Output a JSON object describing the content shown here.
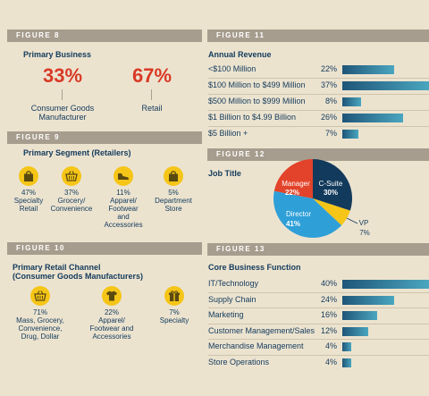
{
  "colors": {
    "background": "#ece3cf",
    "header_bar": "#a79d8e",
    "accent_red": "#d83a26",
    "navy": "#123a5c",
    "icon_yellow": "#f5c518",
    "pie_manager": "#e2432a",
    "pie_csuite": "#123a5c",
    "pie_vp": "#f5c518",
    "pie_director": "#2f9fd8"
  },
  "fig8": {
    "header": "FIGURE 8",
    "title": "Primary Business",
    "items": [
      {
        "pct": "33%",
        "label_line1": "Consumer Goods",
        "label_line2": "Manufacturer"
      },
      {
        "pct": "67%",
        "label_line1": "Retail",
        "label_line2": ""
      }
    ]
  },
  "fig9": {
    "header": "FIGURE 9",
    "title": "Primary Segment (Retailers)",
    "items": [
      {
        "pct": "47%",
        "lines": [
          "Specialty",
          "Retail"
        ],
        "icon": "shopping-bag-icon"
      },
      {
        "pct": "37%",
        "lines": [
          "Grocery/",
          "Convenience"
        ],
        "icon": "shopping-basket-icon"
      },
      {
        "pct": "11%",
        "lines": [
          "Apparel/",
          "Footwear",
          "and",
          "Accessories"
        ],
        "icon": "shoe-icon"
      },
      {
        "pct": "5%",
        "lines": [
          "Department",
          "Store"
        ],
        "icon": "shopping-bag-icon"
      }
    ]
  },
  "fig10": {
    "header": "FIGURE 10",
    "title_line1": "Primary Retail Channel",
    "title_line2": "(Consumer Goods Manufacturers)",
    "items": [
      {
        "pct": "71%",
        "lines": [
          "Mass, Grocery,",
          "Convenience,",
          "Drug, Dollar"
        ],
        "icon": "shopping-basket-icon"
      },
      {
        "pct": "22%",
        "lines": [
          "Apparel/",
          "Footwear and",
          "Accessories"
        ],
        "icon": "tshirt-icon"
      },
      {
        "pct": "7%",
        "lines": [
          "Specialty"
        ],
        "icon": "gift-icon"
      }
    ]
  },
  "fig11": {
    "header": "FIGURE 11"
  },
  "fig12": {
    "header": "FIGURE 12"
  },
  "fig13": {
    "header": "FIGURE 13"
  },
  "chart_data": [
    {
      "type": "bar",
      "orientation": "horizontal",
      "title": "Annual Revenue",
      "categories": [
        "<$100 Million",
        "$100 Million to $499 Million",
        "$500 Million to $999 Million",
        "$1 Billion to $4.99 Billion",
        "$5 Billion +"
      ],
      "values": [
        22,
        37,
        8,
        26,
        7
      ],
      "value_labels": [
        "22%",
        "37%",
        "8%",
        "26%",
        "7%"
      ],
      "unit": "%"
    },
    {
      "type": "pie",
      "title": "Job Title",
      "slices": [
        {
          "name": "C-Suite",
          "value": 30,
          "label": "30%"
        },
        {
          "name": "VP",
          "value": 7,
          "label": "7%"
        },
        {
          "name": "Director",
          "value": 41,
          "label": "41%"
        },
        {
          "name": "Manager",
          "value": 22,
          "label": "22%"
        }
      ]
    },
    {
      "type": "bar",
      "orientation": "horizontal",
      "title": "Core Business Function",
      "categories": [
        "IT/Technology",
        "Supply Chain",
        "Marketing",
        "Customer Management/Sales",
        "Merchandise Management",
        "Store Operations"
      ],
      "values": [
        40,
        24,
        16,
        12,
        4,
        4
      ],
      "value_labels": [
        "40%",
        "24%",
        "16%",
        "12%",
        "4%",
        "4%"
      ],
      "unit": "%"
    }
  ]
}
